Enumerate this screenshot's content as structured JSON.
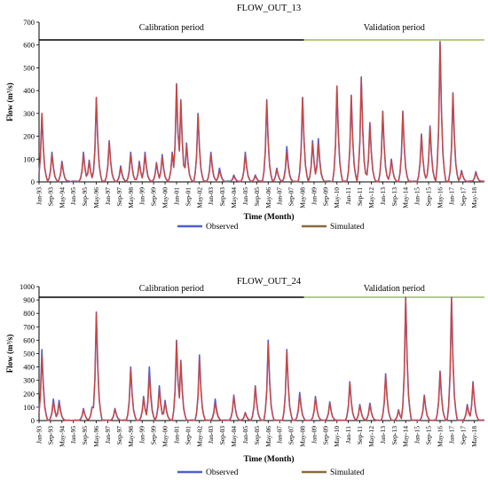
{
  "chart_data": [
    {
      "type": "line",
      "title": "FLOW_OUT_13",
      "xlabel": "Time (Month)",
      "ylabel": "Flow (m³/s)",
      "ylim": [
        0,
        700
      ],
      "yticks": [
        0,
        100,
        200,
        300,
        400,
        500,
        600,
        700
      ],
      "grid": false,
      "legend_position": "bottom",
      "x_tick_labels": [
        "Jan-93",
        "Sep-93",
        "May-94",
        "Jan-95",
        "Sep-95",
        "May-96",
        "Jan-97",
        "Sep-97",
        "May-98",
        "Jan-99",
        "Sep-99",
        "May-00",
        "Jan-01",
        "Sep-01",
        "May-02",
        "Jan-03",
        "Sep-03",
        "May-04",
        "Jan-05",
        "Sep-05",
        "May-06",
        "Jan-07",
        "Sep-07",
        "May-08",
        "Jan-09",
        "Sep-09",
        "May-10",
        "Jan-11",
        "Sep-11",
        "May-12",
        "Jan-13",
        "Sep-13",
        "May-14",
        "Jan-15",
        "Sep-15",
        "May-16",
        "Jan-17",
        "Sep-17",
        "May-18"
      ],
      "periods": [
        {
          "label": "Calibration period",
          "start": "1993-01",
          "end": "2008-06",
          "color": "#000000"
        },
        {
          "label": "Validation period",
          "start": "2008-06",
          "end": "2018-12",
          "color": "#9bbb59"
        }
      ],
      "series": [
        {
          "name": "Observed",
          "color": "#4f5fd0",
          "peaks": [
            [
              "1993-03",
              300
            ],
            [
              "1993-10",
              130
            ],
            [
              "1994-05",
              90
            ],
            [
              "1995-08",
              130
            ],
            [
              "1995-12",
              95
            ],
            [
              "1996-05",
              370
            ],
            [
              "1997-02",
              180
            ],
            [
              "1997-10",
              70
            ],
            [
              "1998-05",
              130
            ],
            [
              "1998-11",
              90
            ],
            [
              "1999-03",
              130
            ],
            [
              "1999-11",
              85
            ],
            [
              "2000-03",
              120
            ],
            [
              "2000-10",
              130
            ],
            [
              "2001-01",
              430
            ],
            [
              "2001-04",
              360
            ],
            [
              "2001-08",
              170
            ],
            [
              "2002-04",
              300
            ],
            [
              "2003-01",
              130
            ],
            [
              "2003-07",
              60
            ],
            [
              "2004-05",
              30
            ],
            [
              "2005-01",
              130
            ],
            [
              "2005-08",
              30
            ],
            [
              "2006-04",
              360
            ],
            [
              "2006-11",
              60
            ],
            [
              "2007-06",
              155
            ],
            [
              "2008-05",
              370
            ],
            [
              "2008-12",
              180
            ],
            [
              "2009-04",
              190
            ],
            [
              "2010-05",
              420
            ],
            [
              "2011-03",
              380
            ],
            [
              "2011-10",
              460
            ],
            [
              "2012-04",
              260
            ],
            [
              "2013-01",
              310
            ],
            [
              "2013-07",
              100
            ],
            [
              "2014-03",
              310
            ],
            [
              "2015-04",
              210
            ],
            [
              "2015-10",
              245
            ],
            [
              "2016-05",
              615
            ],
            [
              "2017-02",
              390
            ],
            [
              "2017-08",
              50
            ],
            [
              "2018-06",
              45
            ]
          ]
        },
        {
          "name": "Simulated",
          "color": "#d0453a",
          "peaks": [
            [
              "1993-03",
              300
            ],
            [
              "1993-10",
              120
            ],
            [
              "1994-05",
              85
            ],
            [
              "1995-08",
              120
            ],
            [
              "1995-12",
              90
            ],
            [
              "1996-05",
              370
            ],
            [
              "1997-02",
              175
            ],
            [
              "1997-10",
              60
            ],
            [
              "1998-05",
              120
            ],
            [
              "1998-11",
              85
            ],
            [
              "1999-03",
              120
            ],
            [
              "1999-11",
              80
            ],
            [
              "2000-03",
              110
            ],
            [
              "2000-10",
              125
            ],
            [
              "2001-01",
              430
            ],
            [
              "2001-04",
              355
            ],
            [
              "2001-08",
              160
            ],
            [
              "2002-04",
              295
            ],
            [
              "2003-01",
              120
            ],
            [
              "2003-07",
              50
            ],
            [
              "2004-05",
              25
            ],
            [
              "2005-01",
              120
            ],
            [
              "2005-08",
              25
            ],
            [
              "2006-04",
              355
            ],
            [
              "2006-11",
              55
            ],
            [
              "2007-06",
              130
            ],
            [
              "2008-05",
              370
            ],
            [
              "2008-12",
              170
            ],
            [
              "2009-04",
              170
            ],
            [
              "2010-05",
              420
            ],
            [
              "2011-03",
              375
            ],
            [
              "2011-10",
              455
            ],
            [
              "2012-04",
              255
            ],
            [
              "2013-01",
              305
            ],
            [
              "2013-07",
              95
            ],
            [
              "2014-03",
              305
            ],
            [
              "2015-04",
              205
            ],
            [
              "2015-10",
              240
            ],
            [
              "2016-05",
              610
            ],
            [
              "2017-02",
              385
            ],
            [
              "2017-08",
              45
            ],
            [
              "2018-06",
              40
            ]
          ]
        }
      ]
    },
    {
      "type": "line",
      "title": "FLOW_OUT_24",
      "xlabel": "Time (Month)",
      "ylabel": "Flow (m³/s)",
      "ylim": [
        0,
        1000
      ],
      "yticks": [
        0,
        100,
        200,
        300,
        400,
        500,
        600,
        700,
        800,
        900,
        1000
      ],
      "grid": false,
      "legend_position": "bottom",
      "x_tick_labels": [
        "Jan-93",
        "Sep-93",
        "May-94",
        "Jan-95",
        "Sep-95",
        "May-96",
        "Jan-97",
        "Sep-97",
        "May-98",
        "Jan-99",
        "Sep-99",
        "May-00",
        "Jan-01",
        "Sep-01",
        "May-02",
        "Jan-03",
        "Sep-03",
        "May-04",
        "Jan-05",
        "Sep-05",
        "May-06",
        "Jan-07",
        "Sep-07",
        "May-08",
        "Jan-09",
        "Sep-09",
        "May-10",
        "Jan-11",
        "Sep-11",
        "May-12",
        "Jan-13",
        "Sep-13",
        "May-14",
        "Jan-15",
        "Sep-15",
        "May-16",
        "Jan-17",
        "Sep-17",
        "May-18"
      ],
      "periods": [
        {
          "label": "Calibration period",
          "start": "1993-01",
          "end": "2008-06",
          "color": "#000000"
        },
        {
          "label": "Validation period",
          "start": "2008-06",
          "end": "2018-12",
          "color": "#9bbb59"
        }
      ],
      "series": [
        {
          "name": "Observed",
          "color": "#4f5fd0",
          "peaks": [
            [
              "1993-03",
              530
            ],
            [
              "1993-11",
              160
            ],
            [
              "1994-03",
              150
            ],
            [
              "1995-08",
              90
            ],
            [
              "1996-02",
              100
            ],
            [
              "1996-05",
              810
            ],
            [
              "1997-06",
              90
            ],
            [
              "1998-05",
              400
            ],
            [
              "1999-02",
              180
            ],
            [
              "1999-06",
              400
            ],
            [
              "2000-01",
              260
            ],
            [
              "2000-05",
              150
            ],
            [
              "2001-01",
              600
            ],
            [
              "2001-04",
              450
            ],
            [
              "2002-05",
              490
            ],
            [
              "2003-04",
              160
            ],
            [
              "2004-05",
              190
            ],
            [
              "2005-01",
              60
            ],
            [
              "2005-08",
              260
            ],
            [
              "2006-05",
              600
            ],
            [
              "2007-06",
              530
            ],
            [
              "2008-03",
              210
            ],
            [
              "2009-02",
              180
            ],
            [
              "2009-12",
              140
            ],
            [
              "2011-02",
              290
            ],
            [
              "2011-09",
              120
            ],
            [
              "2012-04",
              130
            ],
            [
              "2013-03",
              350
            ],
            [
              "2013-12",
              80
            ],
            [
              "2014-05",
              920
            ],
            [
              "2015-06",
              190
            ],
            [
              "2016-05",
              370
            ],
            [
              "2017-01",
              920
            ],
            [
              "2017-12",
              120
            ],
            [
              "2018-04",
              290
            ]
          ]
        },
        {
          "name": "Simulated",
          "color": "#d0453a",
          "peaks": [
            [
              "1993-03",
              480
            ],
            [
              "1993-11",
              140
            ],
            [
              "1994-03",
              130
            ],
            [
              "1995-08",
              85
            ],
            [
              "1996-02",
              95
            ],
            [
              "1996-05",
              800
            ],
            [
              "1997-06",
              85
            ],
            [
              "1998-05",
              380
            ],
            [
              "1999-02",
              170
            ],
            [
              "1999-06",
              340
            ],
            [
              "2000-01",
              230
            ],
            [
              "2000-05",
              135
            ],
            [
              "2001-01",
              590
            ],
            [
              "2001-04",
              440
            ],
            [
              "2002-05",
              460
            ],
            [
              "2003-04",
              130
            ],
            [
              "2004-05",
              180
            ],
            [
              "2005-01",
              55
            ],
            [
              "2005-08",
              255
            ],
            [
              "2006-05",
              570
            ],
            [
              "2007-06",
              520
            ],
            [
              "2008-03",
              190
            ],
            [
              "2009-02",
              170
            ],
            [
              "2009-12",
              130
            ],
            [
              "2011-02",
              280
            ],
            [
              "2011-09",
              110
            ],
            [
              "2012-04",
              120
            ],
            [
              "2013-03",
              340
            ],
            [
              "2013-12",
              75
            ],
            [
              "2014-05",
              915
            ],
            [
              "2015-06",
              180
            ],
            [
              "2016-05",
              360
            ],
            [
              "2017-01",
              910
            ],
            [
              "2017-12",
              110
            ],
            [
              "2018-04",
              280
            ]
          ]
        }
      ]
    }
  ]
}
